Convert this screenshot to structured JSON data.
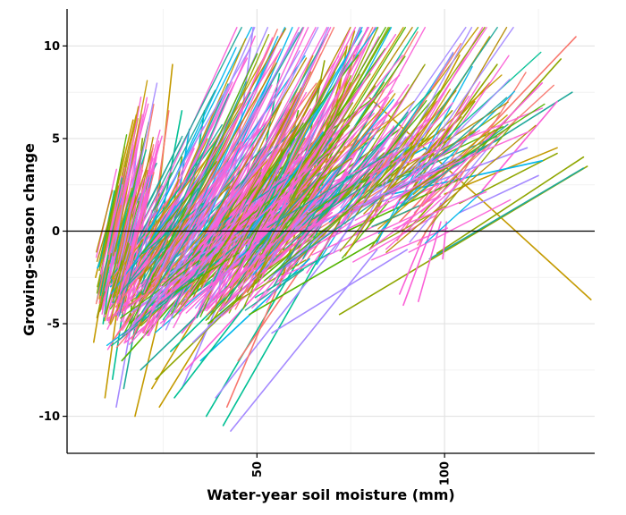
{
  "chart_data": {
    "type": "line",
    "title": "",
    "xlabel": "Water-year soil moisture (mm)",
    "ylabel": "Growing-season change",
    "xlim": [
      -0.6,
      140
    ],
    "ylim": [
      -12.0,
      12.0
    ],
    "x_ticks": [
      {
        "value": 50,
        "label": "50"
      },
      {
        "value": 100,
        "label": "100"
      }
    ],
    "x_minor_ticks": [
      25,
      75,
      125
    ],
    "y_ticks": [
      {
        "value": -10,
        "label": "-10"
      },
      {
        "value": -5,
        "label": "-5"
      },
      {
        "value": 0,
        "label": "0"
      },
      {
        "value": 5,
        "label": "5"
      },
      {
        "value": 10,
        "label": "10"
      }
    ],
    "y_minor_ticks": [
      -7.5,
      -2.5,
      2.5,
      7.5
    ],
    "reference_line_y": 0,
    "grid": true,
    "legend": "none",
    "series_palette": [
      "#F8766D",
      "#C49A00",
      "#53B400",
      "#00C094",
      "#00B6EB",
      "#A58AFF",
      "#FB61D7",
      "#B58900",
      "#8FA600",
      "#1FA89A"
    ],
    "series_note_count": 600,
    "series": [
      {
        "x": [
          7.5,
          18.0
        ],
        "y": [
          -3.0,
          6.2
        ],
        "color": "#8FA600"
      },
      {
        "x": [
          7.0,
          17.0
        ],
        "y": [
          -2.5,
          6.0
        ],
        "color": "#C49A00"
      },
      {
        "x": [
          7.5,
          12.0
        ],
        "y": [
          -2.0,
          0.5
        ],
        "color": "#00B6EB"
      },
      {
        "x": [
          8.5,
          14.0
        ],
        "y": [
          -4.0,
          1.5
        ],
        "color": "#00C094"
      },
      {
        "x": [
          6.5,
          11.0
        ],
        "y": [
          -6.0,
          -0.5
        ],
        "color": "#C49A00"
      },
      {
        "x": [
          9.5,
          18.0
        ],
        "y": [
          -9.0,
          3.5
        ],
        "color": "#C49A00"
      },
      {
        "x": [
          11.5,
          19.0
        ],
        "y": [
          -8.0,
          2.0
        ],
        "color": "#00C094"
      },
      {
        "x": [
          12.5,
          22.0
        ],
        "y": [
          -9.5,
          1.0
        ],
        "color": "#A58AFF"
      },
      {
        "x": [
          14.5,
          24.0
        ],
        "y": [
          -8.5,
          2.0
        ],
        "color": "#1FA89A"
      },
      {
        "x": [
          17.5,
          27.0
        ],
        "y": [
          -10.0,
          -2.0
        ],
        "color": "#C49A00"
      },
      {
        "x": [
          21.5,
          27.5
        ],
        "y": [
          -2.5,
          9.0
        ],
        "color": "#C49A00"
      },
      {
        "x": [
          23.0,
          30.0
        ],
        "y": [
          -1.0,
          6.5
        ],
        "color": "#00C094"
      },
      {
        "x": [
          21.0,
          26.5
        ],
        "y": [
          -1.5,
          6.5
        ],
        "color": "#F8766D"
      },
      {
        "x": [
          22.0,
          55.0
        ],
        "y": [
          -8.5,
          2.5
        ],
        "color": "#C49A00"
      },
      {
        "x": [
          24.0,
          62.0
        ],
        "y": [
          -9.5,
          3.0
        ],
        "color": "#C49A00"
      },
      {
        "x": [
          30.0,
          50.0
        ],
        "y": [
          -8.5,
          1.0
        ],
        "color": "#A58AFF"
      },
      {
        "x": [
          36.5,
          70.0
        ],
        "y": [
          -10.0,
          1.5
        ],
        "color": "#00C094"
      },
      {
        "x": [
          41.0,
          72.0
        ],
        "y": [
          -10.5,
          0.5
        ],
        "color": "#00C094"
      },
      {
        "x": [
          43.0,
          82.0
        ],
        "y": [
          -10.8,
          -1.0
        ],
        "color": "#A58AFF"
      },
      {
        "x": [
          39.0,
          74.0
        ],
        "y": [
          -9.0,
          0.0
        ],
        "color": "#A58AFF"
      },
      {
        "x": [
          42.0,
          66.0
        ],
        "y": [
          -9.5,
          2.0
        ],
        "color": "#F8766D"
      },
      {
        "x": [
          40.0,
          49.0
        ],
        "y": [
          -3.0,
          11.0
        ],
        "color": "#A58AFF"
      },
      {
        "x": [
          56.0,
          76.0
        ],
        "y": [
          -3.0,
          10.8
        ],
        "color": "#C49A00"
      },
      {
        "x": [
          47.0,
          56.0
        ],
        "y": [
          -1.0,
          8.5
        ],
        "color": "#00C094"
      },
      {
        "x": [
          61.0,
          76.0
        ],
        "y": [
          -0.5,
          9.5
        ],
        "color": "#C49A00"
      },
      {
        "x": [
          67.0,
          74.0
        ],
        "y": [
          2.0,
          10.0
        ],
        "color": "#C49A00"
      },
      {
        "x": [
          54.0,
          75.0
        ],
        "y": [
          0.0,
          8.0
        ],
        "color": "#C49A00"
      },
      {
        "x": [
          60.0,
          68.0
        ],
        "y": [
          1.0,
          9.2
        ],
        "color": "#8FA600"
      },
      {
        "x": [
          80.0,
          139.0
        ],
        "y": [
          7.2,
          -3.7
        ],
        "color": "#C49A00"
      },
      {
        "x": [
          72.0,
          138.0
        ],
        "y": [
          -4.5,
          3.5
        ],
        "color": "#8FA600"
      },
      {
        "x": [
          96.0,
          137.0
        ],
        "y": [
          -1.5,
          3.4
        ],
        "color": "#1FA89A"
      },
      {
        "x": [
          98.0,
          137.0
        ],
        "y": [
          -1.2,
          4.0
        ],
        "color": "#8FA600"
      },
      {
        "x": [
          88.0,
          135.0
        ],
        "y": [
          0.5,
          10.5
        ],
        "color": "#F8766D"
      },
      {
        "x": [
          90.0,
          131.0
        ],
        "y": [
          0.0,
          9.3
        ],
        "color": "#8FA600"
      },
      {
        "x": [
          95.0,
          134.0
        ],
        "y": [
          2.5,
          7.5
        ],
        "color": "#1FA89A"
      },
      {
        "x": [
          92.0,
          126.0
        ],
        "y": [
          1.0,
          8.0
        ],
        "color": "#FB61D7"
      },
      {
        "x": [
          85.0,
          112.0
        ],
        "y": [
          2.0,
          10.5
        ],
        "color": "#C49A00"
      },
      {
        "x": [
          80.0,
          108.0
        ],
        "y": [
          -1.0,
          7.0
        ],
        "color": "#8FA600"
      },
      {
        "x": [
          79.0,
          104.0
        ],
        "y": [
          0.0,
          9.5
        ],
        "color": "#C49A00"
      },
      {
        "x": [
          89.0,
          99.0
        ],
        "y": [
          -4.0,
          1.5
        ],
        "color": "#FB61D7"
      },
      {
        "x": [
          93.0,
          99.0
        ],
        "y": [
          -3.8,
          0.5
        ],
        "color": "#FB61D7"
      },
      {
        "x": [
          88.0,
          95.0
        ],
        "y": [
          -3.4,
          0.0
        ],
        "color": "#FB61D7"
      },
      {
        "x": [
          99.5,
          100.5
        ],
        "y": [
          -1.5,
          0.5
        ],
        "color": "#FB61D7"
      },
      {
        "x": [
          100.0,
          130.0
        ],
        "y": [
          2.0,
          4.5
        ],
        "color": "#C49A00"
      },
      {
        "x": [
          104.0,
          130.0
        ],
        "y": [
          1.5,
          4.2
        ],
        "color": "#8FA600"
      },
      {
        "x": [
          104.0,
          125.0
        ],
        "y": [
          1.0,
          3.0
        ],
        "color": "#A58AFF"
      },
      {
        "x": [
          110.0,
          130.0
        ],
        "y": [
          2.2,
          7.0
        ],
        "color": "#FB61D7"
      },
      {
        "x": [
          45.0,
          72.0
        ],
        "y": [
          -7.0,
          1.0
        ],
        "color": "#F8766D"
      },
      {
        "x": [
          30.0,
          60.0
        ],
        "y": [
          -5.5,
          2.0
        ],
        "color": "#FB61D7"
      },
      {
        "x": [
          28.0,
          56.0
        ],
        "y": [
          -4.0,
          3.0
        ],
        "color": "#00B6EB"
      },
      {
        "x": [
          34.0,
          62.0
        ],
        "y": [
          -3.0,
          4.5
        ],
        "color": "#F8766D"
      },
      {
        "x": [
          38.0,
          70.0
        ],
        "y": [
          -4.2,
          2.5
        ],
        "color": "#FB61D7"
      },
      {
        "x": [
          48.0,
          78.0
        ],
        "y": [
          -2.5,
          4.0
        ],
        "color": "#A58AFF"
      },
      {
        "x": [
          52.0,
          84.0
        ],
        "y": [
          -1.5,
          4.5
        ],
        "color": "#FB61D7"
      },
      {
        "x": [
          44.0,
          80.0
        ],
        "y": [
          -2.0,
          3.0
        ],
        "color": "#C49A00"
      },
      {
        "x": [
          55.0,
          88.0
        ],
        "y": [
          0.5,
          5.5
        ],
        "color": "#53B400"
      },
      {
        "x": [
          60.0,
          95.0
        ],
        "y": [
          0.8,
          4.5
        ],
        "color": "#00B6EB"
      },
      {
        "x": [
          65.0,
          100.0
        ],
        "y": [
          1.2,
          5.5
        ],
        "color": "#C49A00"
      },
      {
        "x": [
          70.0,
          110.0
        ],
        "y": [
          0.6,
          4.5
        ],
        "color": "#FB61D7"
      },
      {
        "x": [
          75.0,
          115.0
        ],
        "y": [
          1.0,
          5.0
        ],
        "color": "#1FA89A"
      },
      {
        "x": [
          82.0,
          122.0
        ],
        "y": [
          1.5,
          4.5
        ],
        "color": "#A58AFF"
      },
      {
        "x": [
          86.0,
          126.0
        ],
        "y": [
          2.0,
          3.8
        ],
        "color": "#00B6EB"
      },
      {
        "x": [
          15.0,
          45.0
        ],
        "y": [
          -6.0,
          -1.0
        ],
        "color": "#FB61D7"
      },
      {
        "x": [
          13.0,
          40.0
        ],
        "y": [
          -4.5,
          0.0
        ],
        "color": "#00C094"
      },
      {
        "x": [
          12.0,
          38.0
        ],
        "y": [
          -3.5,
          1.0
        ],
        "color": "#F8766D"
      },
      {
        "x": [
          16.0,
          48.0
        ],
        "y": [
          -5.0,
          0.5
        ],
        "color": "#53B400"
      },
      {
        "x": [
          18.0,
          50.0
        ],
        "y": [
          -3.0,
          2.0
        ],
        "color": "#FB61D7"
      },
      {
        "x": [
          20.0,
          54.0
        ],
        "y": [
          -2.0,
          3.0
        ],
        "color": "#A58AFF"
      },
      {
        "x": [
          22.0,
          58.0
        ],
        "y": [
          -4.0,
          1.5
        ],
        "color": "#00B6EB"
      },
      {
        "x": [
          25.0,
          62.0
        ],
        "y": [
          -1.0,
          4.0
        ],
        "color": "#FB61D7"
      },
      {
        "x": [
          26.0,
          64.0
        ],
        "y": [
          -3.0,
          2.0
        ],
        "color": "#C49A00"
      },
      {
        "x": [
          10.0,
          30.0
        ],
        "y": [
          -2.0,
          2.5
        ],
        "color": "#FB61D7"
      },
      {
        "x": [
          11.0,
          34.0
        ],
        "y": [
          -3.0,
          1.5
        ],
        "color": "#00B6EB"
      },
      {
        "x": [
          14.0,
          36.0
        ],
        "y": [
          -7.0,
          -2.0
        ],
        "color": "#53B400"
      },
      {
        "x": [
          19.0,
          42.0
        ],
        "y": [
          -7.5,
          -3.0
        ],
        "color": "#1FA89A"
      },
      {
        "x": [
          23.0,
          46.0
        ],
        "y": [
          -8.0,
          -3.5
        ],
        "color": "#8FA600"
      },
      {
        "x": [
          27.0,
          52.0
        ],
        "y": [
          -6.5,
          -1.5
        ],
        "color": "#00C094"
      },
      {
        "x": [
          33.0,
          58.0
        ],
        "y": [
          -6.0,
          -1.0
        ],
        "color": "#A58AFF"
      },
      {
        "x": [
          37.0,
          66.0
        ],
        "y": [
          -5.0,
          0.0
        ],
        "color": "#53B400"
      },
      {
        "x": [
          41.0,
          70.0
        ],
        "y": [
          -4.0,
          1.0
        ],
        "color": "#FB61D7"
      },
      {
        "x": [
          46.0,
          74.0
        ],
        "y": [
          -3.5,
          2.5
        ],
        "color": "#F8766D"
      },
      {
        "x": [
          50.0,
          80.0
        ],
        "y": [
          -1.0,
          3.0
        ],
        "color": "#00C094"
      },
      {
        "x": [
          53.0,
          68.0
        ],
        "y": [
          -2.0,
          6.0
        ],
        "color": "#00B6EB"
      },
      {
        "x": [
          57.0,
          72.0
        ],
        "y": [
          -1.0,
          5.0
        ],
        "color": "#53B400"
      },
      {
        "x": [
          62.0,
          78.0
        ],
        "y": [
          0.0,
          5.5
        ],
        "color": "#A58AFF"
      },
      {
        "x": [
          66.0,
          84.0
        ],
        "y": [
          0.5,
          6.0
        ],
        "color": "#00B6EB"
      },
      {
        "x": [
          30.0,
          36.0
        ],
        "y": [
          -1.5,
          6.5
        ],
        "color": "#00C094"
      },
      {
        "x": [
          26.0,
          32.0
        ],
        "y": [
          -2.0,
          5.5
        ],
        "color": "#00B6EB"
      },
      {
        "x": [
          24.0,
          30.0
        ],
        "y": [
          -3.0,
          4.0
        ],
        "color": "#8FA600"
      },
      {
        "x": [
          16.0,
          21.0
        ],
        "y": [
          -5.0,
          3.0
        ],
        "color": "#53B400"
      },
      {
        "x": [
          13.5,
          18.0
        ],
        "y": [
          -4.5,
          4.5
        ],
        "color": "#A58AFF"
      },
      {
        "x": [
          9.0,
          14.0
        ],
        "y": [
          -5.0,
          2.0
        ],
        "color": "#00C094"
      },
      {
        "x": [
          15.0,
          19.5
        ],
        "y": [
          -2.5,
          5.0
        ],
        "color": "#8FA600"
      },
      {
        "x": [
          17.0,
          22.0
        ],
        "y": [
          -3.5,
          4.0
        ],
        "color": "#FB61D7"
      },
      {
        "x": [
          8.0,
          13.0
        ],
        "y": [
          -3.0,
          0.5
        ],
        "color": "#F8766D"
      },
      {
        "x": [
          32.0,
          48.0
        ],
        "y": [
          -2.5,
          5.0
        ],
        "color": "#A58AFF"
      },
      {
        "x": [
          36.0,
          52.0
        ],
        "y": [
          -2.0,
          4.5
        ],
        "color": "#FB61D7"
      },
      {
        "x": [
          40.0,
          56.0
        ],
        "y": [
          -3.0,
          3.5
        ],
        "color": "#53B400"
      },
      {
        "x": [
          44.0,
          60.0
        ],
        "y": [
          -1.5,
          5.0
        ],
        "color": "#00C094"
      },
      {
        "x": [
          58.0,
          86.0
        ],
        "y": [
          -0.5,
          4.0
        ],
        "color": "#F8766D"
      },
      {
        "x": [
          64.0,
          92.0
        ],
        "y": [
          0.0,
          3.5
        ],
        "color": "#A58AFF"
      },
      {
        "x": [
          68.0,
          98.0
        ],
        "y": [
          -0.5,
          2.5
        ],
        "color": "#FB61D7"
      },
      {
        "x": [
          74.0,
          104.0
        ],
        "y": [
          0.0,
          2.8
        ],
        "color": "#53B400"
      },
      {
        "x": [
          78.0,
          98.0
        ],
        "y": [
          2.0,
          7.0
        ],
        "color": "#C49A00"
      },
      {
        "x": [
          84.0,
          102.0
        ],
        "y": [
          2.5,
          6.5
        ],
        "color": "#8FA600"
      },
      {
        "x": [
          90.0,
          112.0
        ],
        "y": [
          3.0,
          8.0
        ],
        "color": "#C49A00"
      },
      {
        "x": [
          96.0,
          114.0
        ],
        "y": [
          4.0,
          9.0
        ],
        "color": "#8FA600"
      },
      {
        "x": [
          35.0,
          64.0
        ],
        "y": [
          -7.0,
          -1.5
        ],
        "color": "#00B6EB"
      },
      {
        "x": [
          31.0,
          54.0
        ],
        "y": [
          -7.5,
          -2.5
        ],
        "color": "#FB61D7"
      },
      {
        "x": [
          28.0,
          47.0
        ],
        "y": [
          -9.0,
          -4.0
        ],
        "color": "#00C094"
      },
      {
        "x": [
          48.0,
          82.0
        ],
        "y": [
          -4.5,
          -0.5
        ],
        "color": "#53B400"
      },
      {
        "x": [
          54.0,
          90.0
        ],
        "y": [
          -5.5,
          -1.0
        ],
        "color": "#A58AFF"
      },
      {
        "x": [
          39.0,
          49.0
        ],
        "y": [
          -4.0,
          4.5
        ],
        "color": "#FB61D7"
      },
      {
        "x": [
          49.0,
          58.0
        ],
        "y": [
          -3.0,
          5.8
        ],
        "color": "#C49A00"
      },
      {
        "x": [
          51.0,
          61.0
        ],
        "y": [
          -2.5,
          6.5
        ],
        "color": "#53B400"
      }
    ]
  }
}
